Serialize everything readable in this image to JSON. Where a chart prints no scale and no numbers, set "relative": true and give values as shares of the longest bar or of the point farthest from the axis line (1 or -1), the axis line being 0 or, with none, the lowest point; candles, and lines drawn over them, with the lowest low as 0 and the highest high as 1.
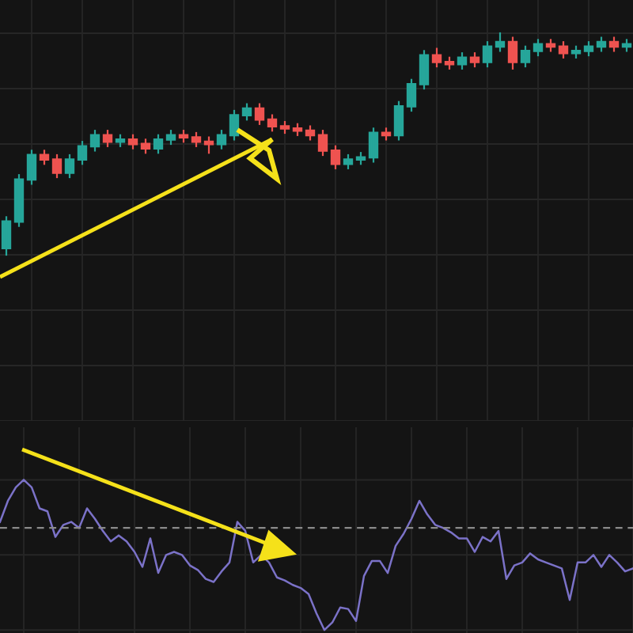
{
  "chart_data": [
    {
      "type": "candlestick",
      "relative": true,
      "grid": true,
      "categories": [
        null,
        null,
        null,
        null,
        null,
        null,
        null,
        null,
        null,
        null,
        null,
        null,
        null,
        null,
        null,
        null,
        null,
        null,
        null,
        null,
        null,
        null,
        null,
        null,
        null,
        null,
        null,
        null,
        null,
        null,
        null,
        null,
        null,
        null,
        null,
        null,
        null,
        null,
        null,
        null,
        null,
        null,
        null,
        null,
        null,
        null,
        null,
        null,
        null,
        null
      ],
      "ohlc": [
        [
          0.03,
          0.17,
          0.0,
          0.15
        ],
        [
          0.15,
          0.36,
          0.13,
          0.34
        ],
        [
          0.34,
          0.47,
          0.32,
          0.45
        ],
        [
          0.45,
          0.47,
          0.41,
          0.43
        ],
        [
          0.43,
          0.45,
          0.35,
          0.37
        ],
        [
          0.37,
          0.45,
          0.35,
          0.43
        ],
        [
          0.43,
          0.51,
          0.41,
          0.49
        ],
        [
          0.49,
          0.56,
          0.47,
          0.54
        ],
        [
          0.54,
          0.56,
          0.49,
          0.51
        ],
        [
          0.51,
          0.54,
          0.49,
          0.52
        ],
        [
          0.52,
          0.54,
          0.48,
          0.5
        ],
        [
          0.5,
          0.52,
          0.46,
          0.48
        ],
        [
          0.48,
          0.54,
          0.46,
          0.52
        ],
        [
          0.52,
          0.56,
          0.5,
          0.54
        ],
        [
          0.54,
          0.56,
          0.51,
          0.53
        ],
        [
          0.53,
          0.55,
          0.49,
          0.51
        ],
        [
          0.51,
          0.53,
          0.46,
          0.5
        ],
        [
          0.5,
          0.56,
          0.48,
          0.54
        ],
        [
          0.54,
          0.65,
          0.52,
          0.63
        ],
        [
          0.63,
          0.68,
          0.61,
          0.66
        ],
        [
          0.66,
          0.68,
          0.59,
          0.61
        ],
        [
          0.61,
          0.63,
          0.56,
          0.58
        ],
        [
          0.58,
          0.6,
          0.55,
          0.57
        ],
        [
          0.57,
          0.59,
          0.54,
          0.56
        ],
        [
          0.56,
          0.58,
          0.52,
          0.54
        ],
        [
          0.54,
          0.56,
          0.45,
          0.47
        ],
        [
          0.47,
          0.49,
          0.39,
          0.41
        ],
        [
          0.41,
          0.45,
          0.39,
          0.43
        ],
        [
          0.43,
          0.46,
          0.41,
          0.44
        ],
        [
          0.44,
          0.57,
          0.42,
          0.55
        ],
        [
          0.55,
          0.57,
          0.52,
          0.54
        ],
        [
          0.54,
          0.69,
          0.52,
          0.67
        ],
        [
          0.67,
          0.79,
          0.65,
          0.77
        ],
        [
          0.77,
          0.92,
          0.75,
          0.9
        ],
        [
          0.9,
          0.93,
          0.85,
          0.87
        ],
        [
          0.87,
          0.89,
          0.84,
          0.86
        ],
        [
          0.86,
          0.91,
          0.84,
          0.89
        ],
        [
          0.89,
          0.91,
          0.85,
          0.87
        ],
        [
          0.87,
          0.96,
          0.85,
          0.94
        ],
        [
          0.94,
          1.0,
          0.92,
          0.96
        ],
        [
          0.96,
          0.98,
          0.84,
          0.87
        ],
        [
          0.87,
          0.94,
          0.85,
          0.92
        ],
        [
          0.92,
          0.97,
          0.9,
          0.95
        ],
        [
          0.95,
          0.97,
          0.92,
          0.94
        ],
        [
          0.94,
          0.96,
          0.89,
          0.91
        ],
        [
          0.91,
          0.94,
          0.89,
          0.92
        ],
        [
          0.92,
          0.96,
          0.9,
          0.94
        ],
        [
          0.94,
          0.98,
          0.92,
          0.96
        ],
        [
          0.96,
          0.98,
          0.92,
          0.94
        ],
        [
          0.94,
          0.97,
          0.92,
          0.95
        ]
      ]
    },
    {
      "type": "line",
      "relative": true,
      "grid": true,
      "color": "#7b72c8",
      "categories": [
        null,
        null,
        null,
        null,
        null,
        null,
        null,
        null,
        null,
        null,
        null,
        null,
        null,
        null,
        null,
        null,
        null,
        null,
        null,
        null,
        null,
        null,
        null,
        null,
        null,
        null,
        null,
        null,
        null,
        null,
        null,
        null,
        null,
        null,
        null,
        null,
        null,
        null,
        null,
        null,
        null,
        null,
        null,
        null,
        null,
        null,
        null,
        null,
        null,
        null,
        null,
        null,
        null,
        null,
        null,
        null,
        null,
        null,
        null,
        null,
        null,
        null,
        null,
        null,
        null,
        null,
        null,
        null,
        null,
        null,
        null,
        null,
        null,
        null,
        null,
        null,
        null,
        null,
        null,
        null,
        null
      ],
      "values": [
        0.72,
        0.86,
        0.95,
        1.0,
        0.95,
        0.81,
        0.79,
        0.62,
        0.7,
        0.72,
        0.68,
        0.81,
        0.74,
        0.66,
        0.59,
        0.63,
        0.59,
        0.52,
        0.42,
        0.61,
        0.38,
        0.5,
        0.52,
        0.5,
        0.43,
        0.4,
        0.34,
        0.32,
        0.39,
        0.45,
        0.72,
        0.66,
        0.45,
        0.5,
        0.45,
        0.35,
        0.33,
        0.3,
        0.28,
        0.24,
        0.11,
        0.0,
        0.05,
        0.15,
        0.14,
        0.06,
        0.36,
        0.46,
        0.46,
        0.38,
        0.56,
        0.64,
        0.74,
        0.86,
        0.77,
        0.7,
        0.68,
        0.65,
        0.61,
        0.61,
        0.52,
        0.62,
        0.59,
        0.66,
        0.34,
        0.43,
        0.45,
        0.51,
        0.47,
        0.45,
        0.43,
        0.41,
        0.2,
        0.45,
        0.45,
        0.5,
        0.42,
        0.5,
        0.45,
        0.39,
        0.41
      ],
      "ref_lines": [
        {
          "axis": "y",
          "value": 0.68,
          "color": "#8a8a8a",
          "line_style": "dashed"
        }
      ]
    }
  ]
}
